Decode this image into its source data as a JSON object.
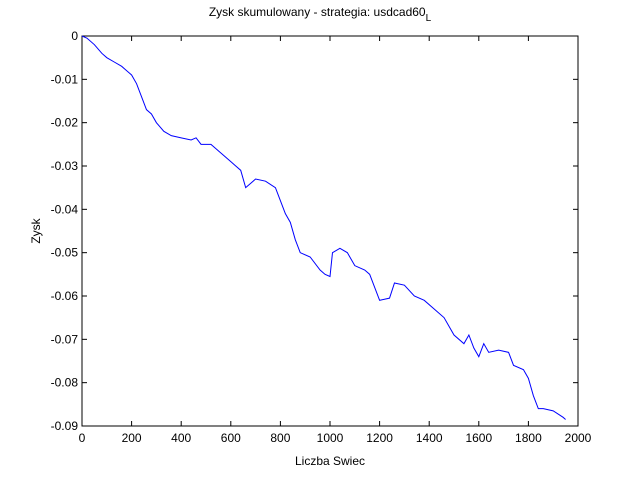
{
  "chart_data": {
    "type": "line",
    "title": "Zysk skumulowany - strategia: usdcad60",
    "title_subscript": "L",
    "xlabel": "Liczba Swiec",
    "ylabel": "Zysk",
    "x": [
      0,
      20,
      50,
      80,
      100,
      130,
      160,
      200,
      220,
      240,
      260,
      280,
      300,
      330,
      360,
      400,
      440,
      460,
      480,
      520,
      560,
      600,
      620,
      640,
      660,
      680,
      700,
      740,
      780,
      800,
      820,
      840,
      860,
      880,
      920,
      960,
      980,
      1000,
      1010,
      1040,
      1070,
      1100,
      1140,
      1160,
      1180,
      1200,
      1240,
      1260,
      1300,
      1340,
      1380,
      1420,
      1460,
      1500,
      1540,
      1560,
      1580,
      1600,
      1620,
      1640,
      1680,
      1720,
      1740,
      1780,
      1800,
      1820,
      1840,
      1860,
      1900,
      1940,
      1950
    ],
    "series": [
      {
        "name": "Zysk",
        "color": "#0000ff",
        "values": [
          0,
          -0.0005,
          -0.002,
          -0.004,
          -0.005,
          -0.006,
          -0.007,
          -0.009,
          -0.011,
          -0.014,
          -0.017,
          -0.018,
          -0.02,
          -0.022,
          -0.023,
          -0.0235,
          -0.024,
          -0.0235,
          -0.025,
          -0.025,
          -0.027,
          -0.029,
          -0.03,
          -0.031,
          -0.035,
          -0.034,
          -0.033,
          -0.0335,
          -0.035,
          -0.038,
          -0.041,
          -0.043,
          -0.047,
          -0.05,
          -0.051,
          -0.054,
          -0.055,
          -0.0555,
          -0.05,
          -0.049,
          -0.05,
          -0.053,
          -0.054,
          -0.055,
          -0.058,
          -0.061,
          -0.0605,
          -0.057,
          -0.0575,
          -0.06,
          -0.061,
          -0.063,
          -0.065,
          -0.069,
          -0.071,
          -0.069,
          -0.072,
          -0.074,
          -0.071,
          -0.073,
          -0.0725,
          -0.073,
          -0.076,
          -0.077,
          -0.079,
          -0.083,
          -0.086,
          -0.086,
          -0.0865,
          -0.088,
          -0.0885
        ]
      }
    ],
    "xlim": [
      0,
      2000
    ],
    "ylim": [
      -0.09,
      0
    ],
    "xticks": [
      0,
      200,
      400,
      600,
      800,
      1000,
      1200,
      1400,
      1600,
      1800,
      2000
    ],
    "yticks": [
      0,
      -0.01,
      -0.02,
      -0.03,
      -0.04,
      -0.05,
      -0.06,
      -0.07,
      -0.08,
      -0.09
    ]
  }
}
